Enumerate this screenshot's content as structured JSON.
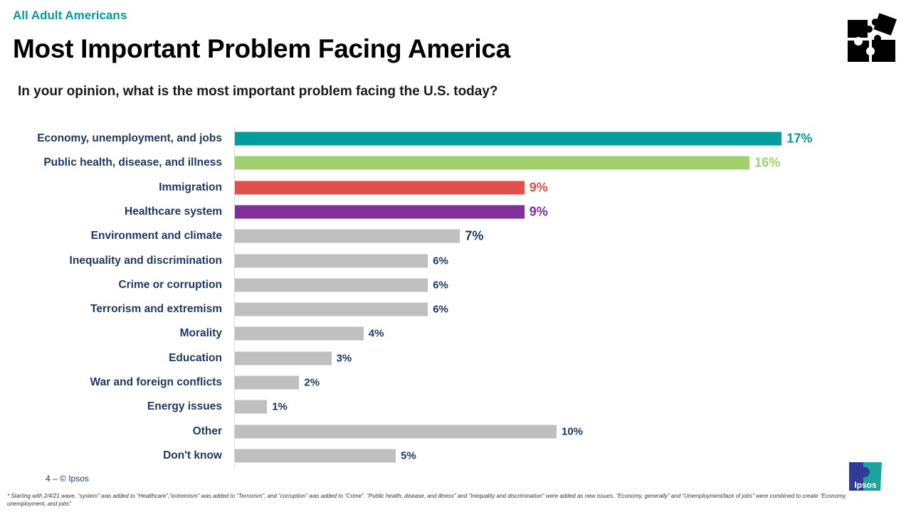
{
  "header": {
    "kicker": "All Adult Americans",
    "title": "Most Important Problem Facing America",
    "question": "In your opinion, what is the most important problem facing the U.S. today?"
  },
  "chart_data": {
    "type": "bar",
    "orientation": "horizontal",
    "categories": [
      "Economy, unemployment, and jobs",
      "Public health, disease, and illness",
      "Immigration",
      "Healthcare system",
      "Environment and climate",
      "Inequality and discrimination",
      "Crime or corruption",
      "Terrorism and extremism",
      "Morality",
      "Education",
      "War and foreign conflicts",
      "Energy issues",
      "Other",
      "Don't know"
    ],
    "values": [
      17,
      16,
      9,
      9,
      7,
      6,
      6,
      6,
      4,
      3,
      2,
      1,
      10,
      5
    ],
    "labels": [
      "17%",
      "16%",
      "9%",
      "9%",
      "7%",
      "6%",
      "6%",
      "6%",
      "4%",
      "3%",
      "2%",
      "1%",
      "10%",
      "5%"
    ],
    "colors": [
      "#009D9A",
      "#A2D06E",
      "#E0504A",
      "#7F3199",
      "#BFBFBF",
      "#BFBFBF",
      "#BFBFBF",
      "#BFBFBF",
      "#BFBFBF",
      "#BFBFBF",
      "#BFBFBF",
      "#BFBFBF",
      "#BFBFBF",
      "#BFBFBF"
    ],
    "label_colors": [
      "#009D9A",
      "#A2D06E",
      "#E0504A",
      "#7F3199",
      "#1F3864",
      "#1F3864",
      "#1F3864",
      "#1F3864",
      "#1F3864",
      "#1F3864",
      "#1F3864",
      "#1F3864",
      "#1F3864",
      "#1F3864"
    ],
    "unit": "%",
    "grid": false
  },
  "footer": {
    "page": "4 –  © Ipsos",
    "footnote": "* Starting with 2/4/21 wave, “system” was added to “Healthcare”,”extremism” was added to “Terrorism”, and “corruption” was added to “Crime”. “Public health, disease, and illness” and “Inequality and discrimination” were added as new issues. “Economy, generally” and “Unemployment/lack of jobs” were combined to create “Economy, unemployment, and jobs”",
    "logo_text": "Ipsos"
  },
  "icons": {
    "top_right": "puzzle-icon"
  }
}
